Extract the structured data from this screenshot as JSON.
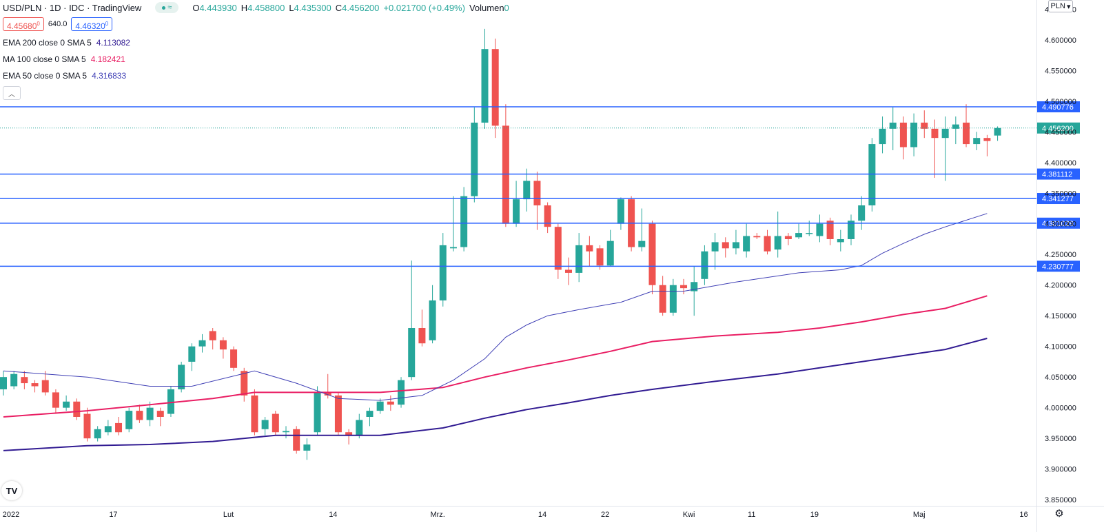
{
  "header": {
    "symbol": "USD/PLN · 1D · IDC · TradingView",
    "ohlc": [
      {
        "k": "O",
        "v": "4.443930"
      },
      {
        "k": "H",
        "v": "4.458800"
      },
      {
        "k": "L",
        "v": "4.435300"
      },
      {
        "k": "C",
        "v": "4.456200"
      }
    ],
    "change": "+0.021700 (+0.49%)",
    "volume_label": "Volumen",
    "volume_value": "0",
    "sell_price": "4.45680",
    "sell_price_suffix": "0",
    "spread": "640.0",
    "buy_price": "4.46320",
    "buy_price_suffix": "0",
    "currency": "PLN",
    "eye_icon": "eye-icon",
    "collapse_icon": "chevron-up-icon",
    "logo": "TV",
    "settings_icon": "gear-icon"
  },
  "indicators": [
    {
      "name": "EMA 200 close 0 SMA 5",
      "value": "4.113082",
      "color": "#311b92"
    },
    {
      "name": "MA 100 close 0 SMA 5",
      "value": "4.182421",
      "color": "#e91e63"
    },
    {
      "name": "EMA 50 close 0 SMA 5",
      "value": "4.316833",
      "color": "#3f3fb5"
    }
  ],
  "chart_data": {
    "type": "candlestick",
    "y_range": [
      3.84,
      4.665
    ],
    "y_ticks": [
      "4.650000",
      "4.600000",
      "4.550000",
      "4.500000",
      "4.450000",
      "4.400000",
      "4.350000",
      "4.300000",
      "4.250000",
      "4.200000",
      "4.150000",
      "4.100000",
      "4.050000",
      "4.000000",
      "3.950000",
      "3.900000",
      "3.850000"
    ],
    "x_labels": [
      {
        "label": "2022",
        "index": -0.5
      },
      {
        "label": "17",
        "index": 10.5
      },
      {
        "label": "Lut",
        "index": 21.5
      },
      {
        "label": "14",
        "index": 31.5
      },
      {
        "label": "Mrz.",
        "index": 41.5
      },
      {
        "label": "14",
        "index": 51.5
      },
      {
        "label": "22",
        "index": 57.5
      },
      {
        "label": "Kwi",
        "index": 65.5
      },
      {
        "label": "11",
        "index": 71.5
      },
      {
        "label": "19",
        "index": 77.5
      },
      {
        "label": "Maj",
        "index": 87.5
      },
      {
        "label": "16",
        "index": 97.5
      }
    ],
    "candles": [
      [
        4.03,
        4.05,
        4.06,
        4.02
      ],
      [
        4.035,
        4.055,
        4.06,
        4.03
      ],
      [
        4.05,
        4.04,
        4.06,
        4.03
      ],
      [
        4.04,
        4.035,
        4.045,
        4.025
      ],
      [
        4.045,
        4.025,
        4.06,
        4.02
      ],
      [
        4.025,
        4.0,
        4.03,
        3.99
      ],
      [
        4.0,
        4.01,
        4.02,
        3.995
      ],
      [
        4.01,
        3.985,
        4.015,
        3.98
      ],
      [
        3.99,
        3.95,
        4.0,
        3.945
      ],
      [
        3.95,
        3.965,
        3.97,
        3.945
      ],
      [
        3.96,
        3.97,
        3.98,
        3.955
      ],
      [
        3.975,
        3.96,
        3.985,
        3.955
      ],
      [
        3.965,
        3.995,
        4.0,
        3.96
      ],
      [
        3.995,
        3.98,
        4.005,
        3.975
      ],
      [
        3.98,
        4.0,
        4.01,
        3.97
      ],
      [
        3.995,
        3.985,
        4.0,
        3.97
      ],
      [
        3.99,
        4.03,
        4.035,
        3.985
      ],
      [
        4.03,
        4.07,
        4.075,
        4.025
      ],
      [
        4.075,
        4.1,
        4.105,
        4.06
      ],
      [
        4.1,
        4.11,
        4.12,
        4.09
      ],
      [
        4.125,
        4.11,
        4.13,
        4.095
      ],
      [
        4.11,
        4.095,
        4.115,
        4.08
      ],
      [
        4.095,
        4.065,
        4.1,
        4.06
      ],
      [
        4.06,
        4.02,
        4.065,
        4.01
      ],
      [
        4.02,
        3.96,
        4.03,
        3.955
      ],
      [
        3.965,
        3.98,
        3.985,
        3.955
      ],
      [
        3.99,
        3.96,
        3.995,
        3.955
      ],
      [
        3.96,
        3.962,
        3.97,
        3.95
      ],
      [
        3.965,
        3.93,
        3.97,
        3.925
      ],
      [
        3.93,
        3.94,
        3.95,
        3.915
      ],
      [
        3.96,
        4.025,
        4.035,
        3.955
      ],
      [
        4.025,
        4.02,
        4.055,
        4.015
      ],
      [
        4.02,
        3.96,
        4.025,
        3.955
      ],
      [
        3.96,
        3.955,
        3.965,
        3.94
      ],
      [
        3.955,
        3.98,
        3.99,
        3.95
      ],
      [
        3.985,
        3.995,
        4.0,
        3.97
      ],
      [
        3.995,
        4.01,
        4.015,
        3.99
      ],
      [
        4.01,
        4.005,
        4.02,
        3.995
      ],
      [
        4.005,
        4.045,
        4.05,
        4.0
      ],
      [
        4.05,
        4.13,
        4.24,
        4.045
      ],
      [
        4.13,
        4.105,
        4.16,
        4.1
      ],
      [
        4.11,
        4.175,
        4.2,
        4.105
      ],
      [
        4.175,
        4.265,
        4.285,
        4.165
      ],
      [
        4.26,
        4.262,
        4.345,
        4.255
      ],
      [
        4.262,
        4.345,
        4.36,
        4.255
      ],
      [
        4.345,
        4.465,
        4.49,
        4.335
      ],
      [
        4.465,
        4.585,
        4.618,
        4.455
      ],
      [
        4.585,
        4.46,
        4.602,
        4.44
      ],
      [
        4.46,
        4.3,
        4.495,
        4.295
      ],
      [
        4.3,
        4.34,
        4.37,
        4.295
      ],
      [
        4.34,
        4.37,
        4.39,
        4.32
      ],
      [
        4.37,
        4.33,
        4.385,
        4.29
      ],
      [
        4.33,
        4.295,
        4.335,
        4.285
      ],
      [
        4.295,
        4.225,
        4.3,
        4.21
      ],
      [
        4.225,
        4.22,
        4.245,
        4.2
      ],
      [
        4.22,
        4.265,
        4.285,
        4.205
      ],
      [
        4.265,
        4.255,
        4.28,
        4.23
      ],
      [
        4.26,
        4.232,
        4.265,
        4.225
      ],
      [
        4.232,
        4.272,
        4.29,
        4.23
      ],
      [
        4.3,
        4.34,
        4.343,
        4.29
      ],
      [
        4.34,
        4.262,
        4.345,
        4.255
      ],
      [
        4.262,
        4.272,
        4.325,
        4.255
      ],
      [
        4.3,
        4.2,
        4.305,
        4.185
      ],
      [
        4.2,
        4.155,
        4.215,
        4.15
      ],
      [
        4.155,
        4.2,
        4.21,
        4.15
      ],
      [
        4.2,
        4.195,
        4.21,
        4.185
      ],
      [
        4.19,
        4.205,
        4.23,
        4.15
      ],
      [
        4.21,
        4.255,
        4.265,
        4.2
      ],
      [
        4.255,
        4.27,
        4.285,
        4.225
      ],
      [
        4.27,
        4.26,
        4.278,
        4.245
      ],
      [
        4.26,
        4.27,
        4.29,
        4.25
      ],
      [
        4.255,
        4.28,
        4.3,
        4.245
      ],
      [
        4.28,
        4.278,
        4.285,
        4.275
      ],
      [
        4.28,
        4.255,
        4.29,
        4.25
      ],
      [
        4.258,
        4.28,
        4.32,
        4.245
      ],
      [
        4.28,
        4.275,
        4.285,
        4.265
      ],
      [
        4.278,
        4.285,
        4.3,
        4.275
      ],
      [
        4.285,
        4.285,
        4.305,
        4.28
      ],
      [
        4.28,
        4.3,
        4.315,
        4.27
      ],
      [
        4.305,
        4.275,
        4.31,
        4.265
      ],
      [
        4.27,
        4.275,
        4.29,
        4.255
      ],
      [
        4.275,
        4.305,
        4.315,
        4.265
      ],
      [
        4.305,
        4.33,
        4.345,
        4.29
      ],
      [
        4.33,
        4.43,
        4.44,
        4.32
      ],
      [
        4.43,
        4.455,
        4.475,
        4.415
      ],
      [
        4.455,
        4.465,
        4.49,
        4.42
      ],
      [
        4.465,
        4.425,
        4.475,
        4.405
      ],
      [
        4.425,
        4.465,
        4.48,
        4.41
      ],
      [
        4.465,
        4.455,
        4.485,
        4.44
      ],
      [
        4.455,
        4.44,
        4.47,
        4.375
      ],
      [
        4.44,
        4.455,
        4.475,
        4.37
      ],
      [
        4.455,
        4.462,
        4.475,
        4.43
      ],
      [
        4.465,
        4.43,
        4.495,
        4.425
      ],
      [
        4.43,
        4.44,
        4.45,
        4.42
      ],
      [
        4.44,
        4.435,
        4.445,
        4.41
      ],
      [
        4.44393,
        4.4562,
        4.4588,
        4.4353
      ]
    ],
    "ema50": [
      [
        0,
        4.06
      ],
      [
        8,
        4.05
      ],
      [
        14,
        4.035
      ],
      [
        18,
        4.035
      ],
      [
        24,
        4.06
      ],
      [
        28,
        4.04
      ],
      [
        32,
        4.015
      ],
      [
        36,
        4.012
      ],
      [
        40,
        4.02
      ],
      [
        43,
        4.045
      ],
      [
        46,
        4.08
      ],
      [
        48,
        4.115
      ],
      [
        50,
        4.135
      ],
      [
        52,
        4.15
      ],
      [
        55,
        4.16
      ],
      [
        59,
        4.172
      ],
      [
        62,
        4.19
      ],
      [
        65,
        4.19
      ],
      [
        70,
        4.205
      ],
      [
        76,
        4.22
      ],
      [
        80,
        4.225
      ],
      [
        82,
        4.232
      ],
      [
        84,
        4.252
      ],
      [
        86,
        4.268
      ],
      [
        88,
        4.283
      ],
      [
        90,
        4.295
      ],
      [
        94,
        4.316833
      ]
    ],
    "ma100": [
      [
        0,
        3.985
      ],
      [
        8,
        3.995
      ],
      [
        14,
        4.005
      ],
      [
        20,
        4.015
      ],
      [
        24,
        4.025
      ],
      [
        30,
        4.025
      ],
      [
        36,
        4.025
      ],
      [
        42,
        4.033
      ],
      [
        46,
        4.05
      ],
      [
        50,
        4.065
      ],
      [
        54,
        4.078
      ],
      [
        58,
        4.092
      ],
      [
        62,
        4.108
      ],
      [
        68,
        4.117
      ],
      [
        74,
        4.123
      ],
      [
        78,
        4.13
      ],
      [
        82,
        4.14
      ],
      [
        86,
        4.152
      ],
      [
        90,
        4.162
      ],
      [
        94,
        4.182421
      ]
    ],
    "ema200": [
      [
        0,
        3.93
      ],
      [
        8,
        3.938
      ],
      [
        14,
        3.94
      ],
      [
        20,
        3.945
      ],
      [
        26,
        3.955
      ],
      [
        32,
        3.955
      ],
      [
        36,
        3.955
      ],
      [
        42,
        3.967
      ],
      [
        46,
        3.983
      ],
      [
        50,
        3.997
      ],
      [
        54,
        4.008
      ],
      [
        58,
        4.02
      ],
      [
        62,
        4.03
      ],
      [
        68,
        4.043
      ],
      [
        74,
        4.055
      ],
      [
        78,
        4.065
      ],
      [
        82,
        4.075
      ],
      [
        86,
        4.085
      ],
      [
        90,
        4.095
      ],
      [
        94,
        4.113082
      ]
    ],
    "levels": [
      {
        "value": "4.490776"
      },
      {
        "value": "4.381112"
      },
      {
        "value": "4.341277"
      },
      {
        "value": "4.301029"
      },
      {
        "value": "4.230777"
      }
    ],
    "last_price": "4.456200",
    "colors": {
      "up": "#26a69a",
      "down": "#ef5350",
      "level": "#2962ff",
      "text": "#131722",
      "axis": "#b2b5be"
    }
  }
}
